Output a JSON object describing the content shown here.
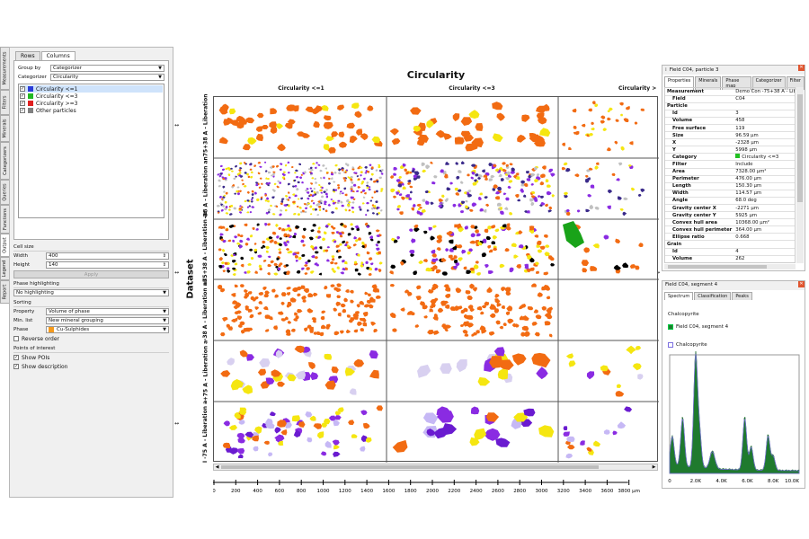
{
  "left_panel": {
    "vertical_tabs": [
      "Measurements",
      "Filters",
      "Minerals",
      "Categorizers",
      "Queries",
      "Functions",
      "Output",
      "Legend",
      "Report"
    ],
    "tabs": [
      "Rows",
      "Columns"
    ],
    "group_by_label": "Group by",
    "group_by_value": "Categorizer",
    "categorizer_label": "Categorizer",
    "categorizer_value": "Circularity",
    "categories": [
      {
        "label": "Circularity <=1",
        "color": "#2b3cd8",
        "checked": true
      },
      {
        "label": "Circularity <=3",
        "color": "#22b822",
        "checked": true
      },
      {
        "label": "Circularity >=3",
        "color": "#e02020",
        "checked": true
      },
      {
        "label": "Other particles",
        "color": "#808080",
        "checked": true
      }
    ],
    "cell_size_label": "Cell size",
    "width_label": "Width",
    "width_value": "400",
    "height_label": "Height",
    "height_value": "140",
    "apply_label": "Apply",
    "phase_highlighting_label": "Phase highlighting",
    "phase_highlighting_value": "No highlighting",
    "sorting_label": "Sorting",
    "property_label": "Property",
    "property_value": "Volume of phase",
    "min_list_label": "Min. list",
    "min_list_value": "New mineral grouping",
    "phase_label": "Phase",
    "phase_value": "Cu-Sulphides",
    "phase_color": "#f59a1c",
    "reverse_order_label": "Reverse order",
    "poi_label": "Points of interest",
    "show_pois_label": "Show POIs",
    "show_description_label": "Show description"
  },
  "center": {
    "title": "Circularity",
    "columns": [
      "Circularity <=1",
      "Circularity <=3",
      "Circularity >"
    ],
    "dataset_label": "Dataset",
    "rows": [
      "I -75 A - Liberation a",
      "+75 A - Liberation a",
      "-38 A - Liberation an",
      "n75+38 A - Liberation ar",
      "-38 A - Liberation ar",
      "n75+38 A - Liberation"
    ],
    "scale_ticks": [
      "0",
      "200",
      "400",
      "600",
      "800",
      "1000",
      "1200",
      "1400",
      "1600",
      "1800",
      "2000",
      "2200",
      "2400",
      "2600",
      "2800",
      "3000",
      "3200",
      "3400",
      "3600"
    ],
    "scale_end": "3800 μm"
  },
  "properties_panel": {
    "title": "Field C04, particle 3",
    "tabs": [
      "Properties",
      "Minerals",
      "Phase map",
      "Categorizer",
      "Filter"
    ],
    "rows": [
      {
        "k": "Measurement",
        "v": "Demo Con -75+38 A - Libe"
      },
      {
        "k": "Field",
        "v": "C04"
      },
      {
        "k": "Particle",
        "v": ""
      },
      {
        "k": "Id",
        "v": "3"
      },
      {
        "k": "Volume",
        "v": "458"
      },
      {
        "k": "Free surface",
        "v": "119"
      },
      {
        "k": "Size",
        "v": "96.59 μm"
      },
      {
        "k": "X",
        "v": "-2328 μm"
      },
      {
        "k": "Y",
        "v": "5998 μm"
      },
      {
        "k": "Category",
        "v": "Circularity <=3"
      },
      {
        "k": "Filter",
        "v": "Include"
      },
      {
        "k": "Area",
        "v": "7328.00 μm²"
      },
      {
        "k": "Perimeter",
        "v": "476.00 μm"
      },
      {
        "k": "Length",
        "v": "150.30 μm"
      },
      {
        "k": "Width",
        "v": "114.57 μm"
      },
      {
        "k": "Angle",
        "v": "68.0 deg"
      },
      {
        "k": "Gravity center X",
        "v": "-2271 μm"
      },
      {
        "k": "Gravity center Y",
        "v": "5925 μm"
      },
      {
        "k": "Convex hull area",
        "v": "10368.00 μm²"
      },
      {
        "k": "Convex hull perimeter",
        "v": "364.00 μm"
      },
      {
        "k": "Ellipse ratio",
        "v": "0.668"
      },
      {
        "k": "Grain",
        "v": ""
      },
      {
        "k": "Id",
        "v": "4"
      },
      {
        "k": "Volume",
        "v": "262"
      }
    ],
    "category_color": "#22c022"
  },
  "spectrum_panel": {
    "title": "Field C04, segment 4",
    "tabs": [
      "Spectrum",
      "Classification",
      "Peaks"
    ],
    "label": "Chalcopyrite",
    "legend": [
      {
        "label": "Field C04, segment 4",
        "color": "#1f7a2e"
      },
      {
        "label": "Chalcopyrite",
        "color": "#7b6fe0"
      }
    ],
    "x_ticks": [
      "0",
      "2.0K",
      "4.0K",
      "6.0K",
      "8.0K",
      "10.0K"
    ]
  }
}
